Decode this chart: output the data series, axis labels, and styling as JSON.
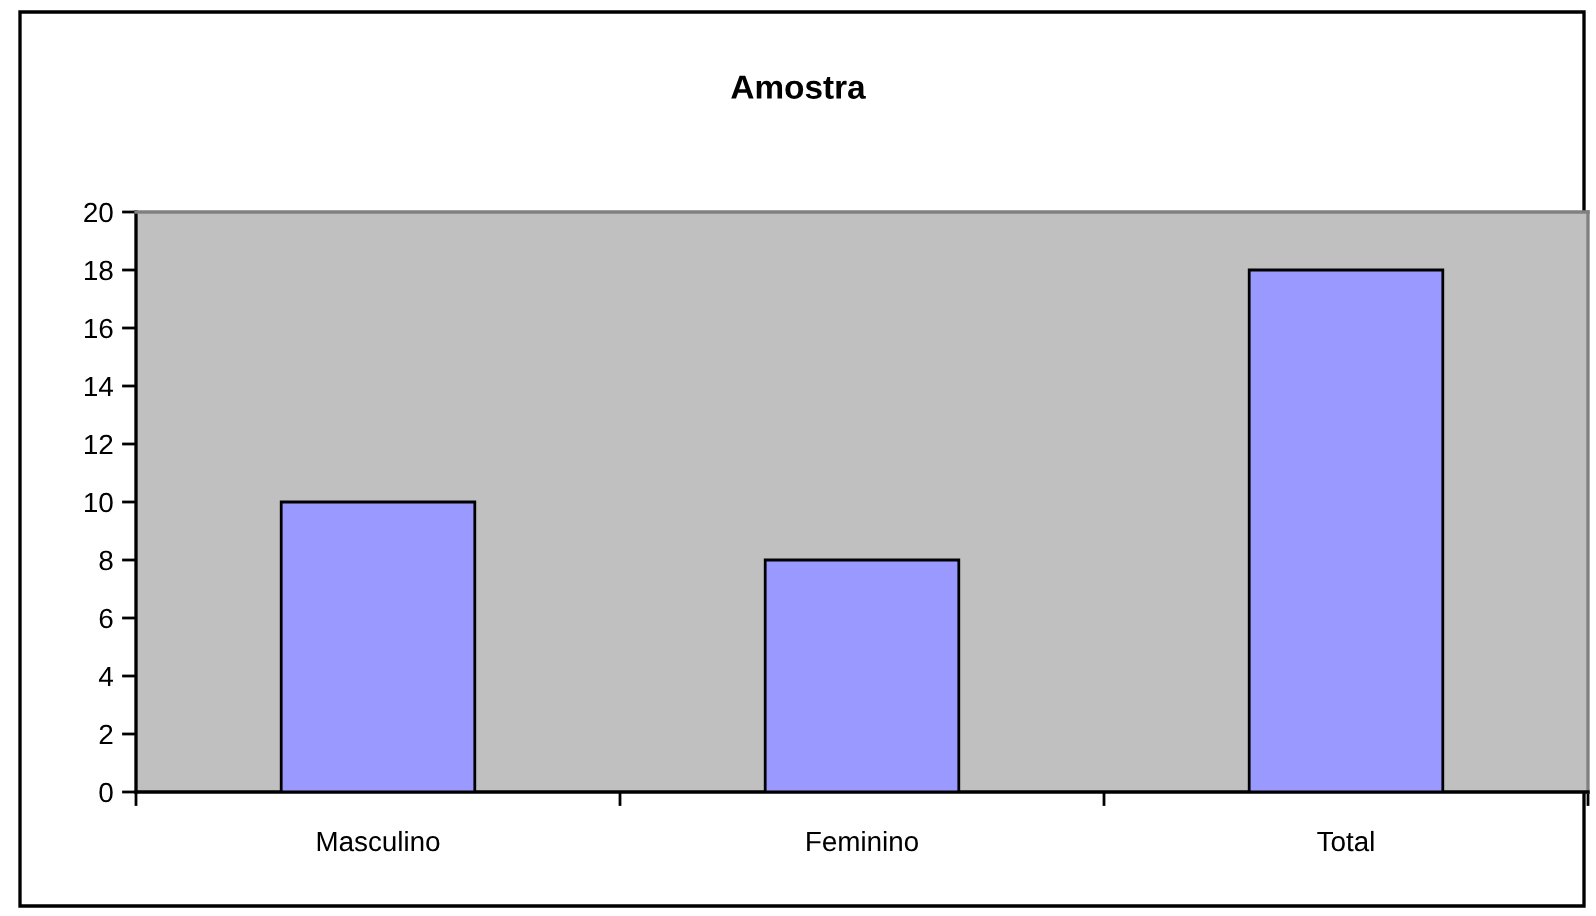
{
  "chart_data": {
    "type": "bar",
    "title": "Amostra",
    "categories": [
      "Masculino",
      "Feminino",
      "Total"
    ],
    "values": [
      10,
      8,
      18
    ],
    "color": "#9999ff",
    "ylim": [
      0,
      20
    ],
    "yticks": [
      0,
      2,
      4,
      6,
      8,
      10,
      12,
      14,
      16,
      18,
      20
    ],
    "grid": false
  }
}
